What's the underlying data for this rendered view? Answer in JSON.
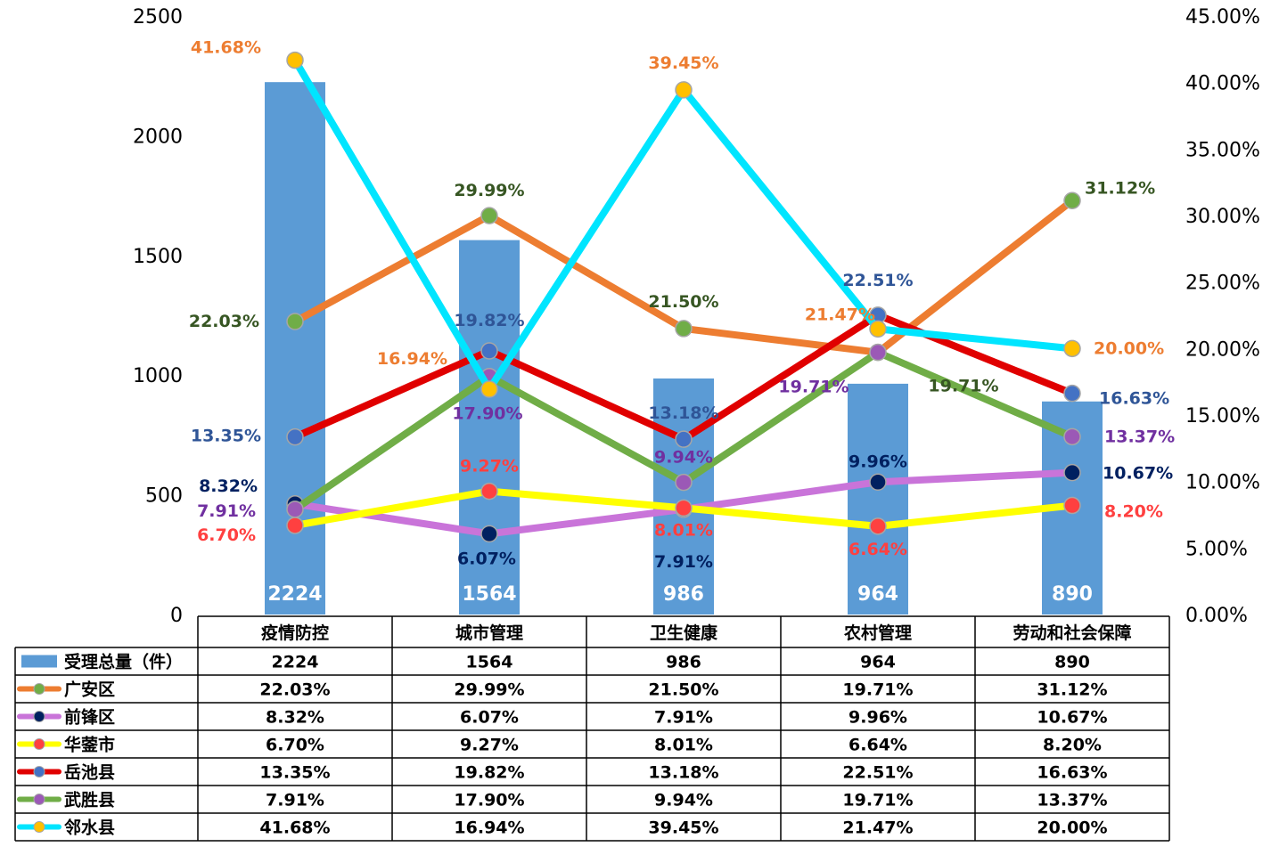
{
  "chart_data": {
    "type": "bar+line",
    "categories": [
      "疫情防控",
      "城市管理",
      "卫生健康",
      "农村管理",
      "劳动和社会保障"
    ],
    "left_axis": {
      "ylim": [
        0,
        2500
      ],
      "ticks": [
        "0",
        "500",
        "1000",
        "1500",
        "2000",
        "2500"
      ]
    },
    "right_axis": {
      "ylim": [
        0,
        45
      ],
      "ticks": [
        "0.00%",
        "5.00%",
        "10.00%",
        "15.00%",
        "20.00%",
        "25.00%",
        "30.00%",
        "35.00%",
        "40.00%",
        "45.00%"
      ]
    },
    "bar_series": {
      "name": "受理总量（件）",
      "color": "#5b9bd5",
      "values": [
        2224,
        1564,
        986,
        964,
        890
      ],
      "labels": [
        "2224",
        "1564",
        "986",
        "964",
        "890"
      ]
    },
    "line_series": [
      {
        "name": "广安区",
        "line_color": "#ed7d31",
        "marker_color": "#70ad47",
        "label_color": "#375623",
        "values": [
          22.03,
          29.99,
          21.5,
          19.71,
          31.12
        ],
        "labels": [
          "22.03%",
          "29.99%",
          "21.50%",
          "19.71%",
          "31.12%"
        ]
      },
      {
        "name": "前锋区",
        "line_color": "#c974d9",
        "marker_color": "#002060",
        "label_color": "#002060",
        "values": [
          8.32,
          6.07,
          7.91,
          9.96,
          10.67
        ],
        "labels": [
          "8.32%",
          "6.07%",
          "7.91%",
          "9.96%",
          "10.67%"
        ]
      },
      {
        "name": "华蓥市",
        "line_color": "#ffff00",
        "marker_color": "#ff4040",
        "label_color": "#ff4040",
        "values": [
          6.7,
          9.27,
          8.01,
          6.64,
          8.2
        ],
        "labels": [
          "6.70%",
          "9.27%",
          "8.01%",
          "6.64%",
          "8.20%"
        ]
      },
      {
        "name": "岳池县",
        "line_color": "#e00000",
        "marker_color": "#4472c4",
        "label_color": "#2f5597",
        "values": [
          13.35,
          19.82,
          13.18,
          22.51,
          16.63
        ],
        "labels": [
          "13.35%",
          "19.82%",
          "13.18%",
          "22.51%",
          "16.63%"
        ]
      },
      {
        "name": "武胜县",
        "line_color": "#70ad47",
        "marker_color": "#9b59b6",
        "label_color": "#7030a0",
        "values": [
          7.91,
          17.9,
          9.94,
          19.71,
          13.37
        ],
        "labels": [
          "7.91%",
          "17.90%",
          "9.94%",
          "19.71%",
          "13.37%"
        ]
      },
      {
        "name": "邻水县",
        "line_color": "#00e5ff",
        "marker_color": "#ffc000",
        "label_color": "#ed7d31",
        "values": [
          41.68,
          16.94,
          39.45,
          21.47,
          20.0
        ],
        "labels": [
          "41.68%",
          "16.94%",
          "39.45%",
          "21.47%",
          "20.00%"
        ]
      }
    ]
  }
}
